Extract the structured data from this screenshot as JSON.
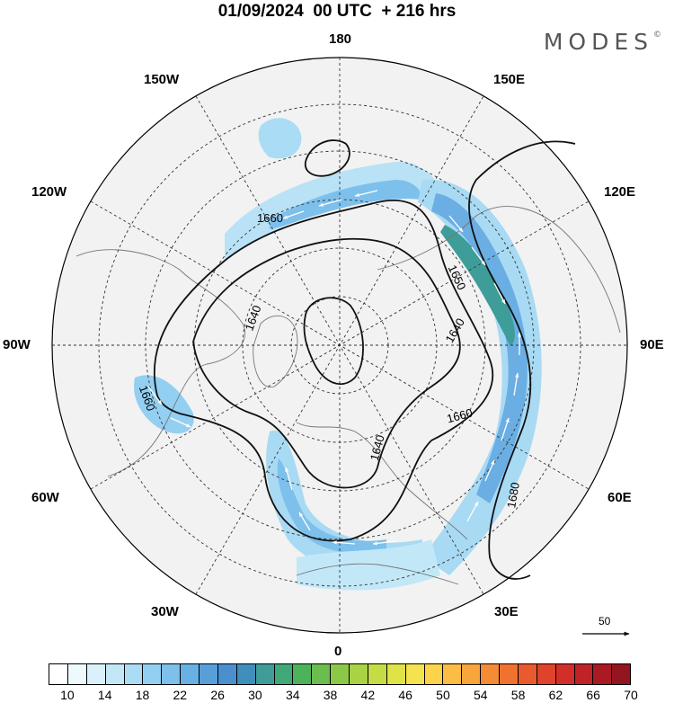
{
  "title": "01/09/2024  00 UTC  + 216 hrs",
  "brand": {
    "name": "MODES",
    "mark": "©"
  },
  "longitude_labels": {
    "l180": "180",
    "l150w": "150W",
    "l150e": "150E",
    "l120w": "120W",
    "l120e": "120E",
    "l90w": "90W",
    "l90e": "90E",
    "l60w": "60W",
    "l60e": "60E",
    "l30w": "30W",
    "l30e": "30E",
    "l0": "0"
  },
  "contour_labels": {
    "c1660a": "1660",
    "c1650": "1650",
    "c1640a": "1640",
    "c1640b": "1640",
    "c1640c": "1640",
    "c1660b": "1660",
    "c1660c": "1660",
    "c1680": "1680"
  },
  "reference_vector": {
    "value": "50"
  },
  "colorbar": {
    "colors": [
      "#ffffff",
      "#eef9fc",
      "#d9f1fb",
      "#c2e8f8",
      "#aadcf5",
      "#93cff1",
      "#7dc0ec",
      "#69b0e4",
      "#589fda",
      "#4a90cf",
      "#3f8fba",
      "#3e9d99",
      "#41a978",
      "#4db35a",
      "#6bbd4f",
      "#8bc848",
      "#a9d244",
      "#c6dc44",
      "#e0e348",
      "#f4e24f",
      "#fdd34b",
      "#fbbd43",
      "#f8a53c",
      "#f48c36",
      "#ef7231",
      "#e95a2e",
      "#e0432b",
      "#d22f29",
      "#bf2327",
      "#aa1a23",
      "#931520"
    ],
    "ticks": [
      "10",
      "14",
      "18",
      "22",
      "26",
      "30",
      "34",
      "38",
      "42",
      "46",
      "50",
      "54",
      "58",
      "62",
      "66",
      "70"
    ]
  },
  "colors": {
    "ocean_land": "#f2f2f2",
    "contour": "#111111",
    "grid": "#333333"
  }
}
